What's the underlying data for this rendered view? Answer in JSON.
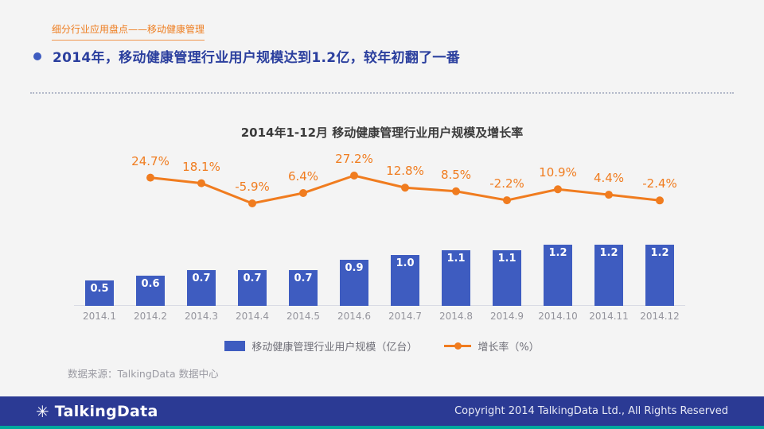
{
  "header": {
    "breadcrumb": "细分行业应用盘点——移动健康管理",
    "headline": "2014年，移动健康管理行业用户规模达到1.2亿，较年初翻了一番"
  },
  "chart_data": {
    "type": "bar+line",
    "title": "2014年1-12月 移动健康管理行业用户规模及增长率",
    "categories": [
      "2014.1",
      "2014.2",
      "2014.3",
      "2014.4",
      "2014.5",
      "2014.6",
      "2014.7",
      "2014.8",
      "2014.9",
      "2014.10",
      "2014.11",
      "2014.12"
    ],
    "series": [
      {
        "name": "移动健康管理行业用户规模（亿台）",
        "type": "bar",
        "color": "#3e5cc0",
        "values": [
          0.5,
          0.6,
          0.7,
          0.7,
          0.7,
          0.9,
          1.0,
          1.1,
          1.1,
          1.2,
          1.2,
          1.2
        ]
      },
      {
        "name": "增长率（%）",
        "type": "line",
        "color": "#f07c1f",
        "values": [
          null,
          24.7,
          18.1,
          -5.9,
          6.4,
          27.2,
          12.8,
          8.5,
          -2.2,
          10.9,
          4.4,
          -2.4
        ]
      }
    ],
    "ylabel": "",
    "xlabel": "",
    "grid": false,
    "legend_position": "bottom"
  },
  "source": "数据来源：TalkingData 数据中心",
  "footer": {
    "logo_text": "TalkingData",
    "copyright": "Copyright 2014 TalkingData Ltd., All Rights Reserved"
  },
  "colors": {
    "accent_orange": "#f07c1f",
    "bar_blue": "#3e5cc0",
    "headline_blue": "#2b3f9e",
    "footer_navy": "#2b3a94",
    "footer_strip_teal": "#00a99d",
    "background": "#f4f4f4"
  }
}
